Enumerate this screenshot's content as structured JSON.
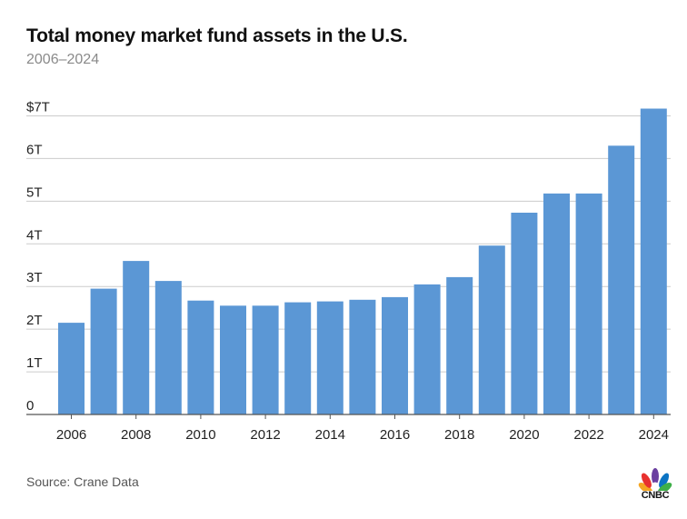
{
  "chart_data": {
    "type": "bar",
    "title": "Total money market fund assets in the U.S.",
    "subtitle": "2006–2024",
    "categories": [
      "2006",
      "2007",
      "2008",
      "2009",
      "2010",
      "2011",
      "2012",
      "2013",
      "2014",
      "2015",
      "2016",
      "2017",
      "2018",
      "2019",
      "2020",
      "2021",
      "2022",
      "2023",
      "2024"
    ],
    "values": [
      2.15,
      2.95,
      3.6,
      3.13,
      2.67,
      2.55,
      2.55,
      2.63,
      2.65,
      2.69,
      2.75,
      3.05,
      3.22,
      3.96,
      4.73,
      5.18,
      5.18,
      6.3,
      7.17
    ],
    "x_tick_labels": [
      "2006",
      "2008",
      "2010",
      "2012",
      "2014",
      "2016",
      "2018",
      "2020",
      "2022",
      "2024"
    ],
    "y_tick_labels": [
      "0",
      "1T",
      "2T",
      "3T",
      "4T",
      "5T",
      "6T",
      "$7T"
    ],
    "ylim": [
      0,
      7
    ],
    "xlabel": "",
    "ylabel": "",
    "grid": true,
    "bar_color": "#5b97d5",
    "grid_color": "#cccccc"
  },
  "source": "Source: Crane Data",
  "logo": {
    "text": "CNBC",
    "icon": "peacock-icon"
  }
}
